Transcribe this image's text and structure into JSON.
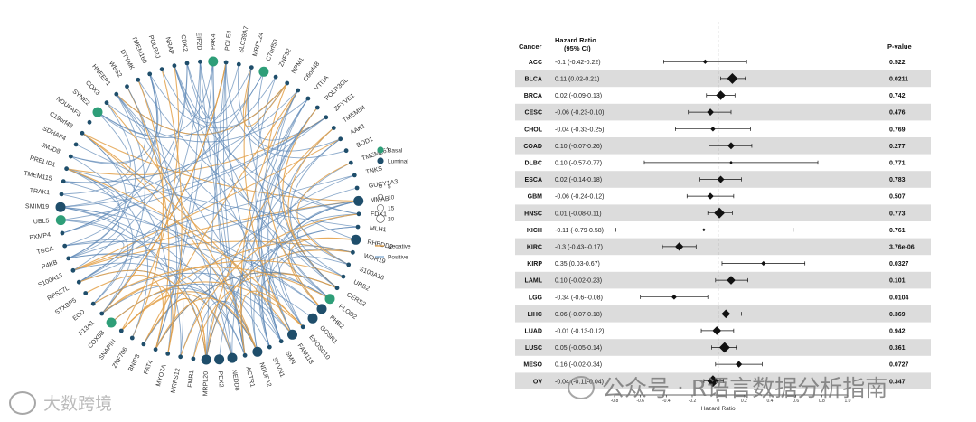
{
  "network": {
    "legend": {
      "groups": [
        {
          "label": "Basal",
          "color": "#2e9e78"
        },
        {
          "label": "Luminal",
          "color": "#1f4e6b"
        }
      ],
      "sizes": [
        "5",
        "10",
        "15",
        "20"
      ],
      "edges": [
        {
          "label": "Negative",
          "color": "#e3a14a"
        },
        {
          "label": "Positive",
          "color": "#7ea7cf"
        }
      ]
    },
    "genes": [
      {
        "name": "POLE4",
        "group": "luminal",
        "size": 1
      },
      {
        "name": "SLC39A7",
        "group": "luminal",
        "size": 1
      },
      {
        "name": "MRPL24",
        "group": "luminal",
        "size": 1
      },
      {
        "name": "C7orf50",
        "group": "basal",
        "size": 2
      },
      {
        "name": "ZNF32",
        "group": "luminal",
        "size": 1
      },
      {
        "name": "NPM1",
        "group": "luminal",
        "size": 1
      },
      {
        "name": "C6orf48",
        "group": "luminal",
        "size": 1
      },
      {
        "name": "VTI1A",
        "group": "luminal",
        "size": 1
      },
      {
        "name": "POLR3GL",
        "group": "luminal",
        "size": 1
      },
      {
        "name": "ZFYVE1",
        "group": "luminal",
        "size": 1
      },
      {
        "name": "TMEM54",
        "group": "luminal",
        "size": 1
      },
      {
        "name": "AAK1",
        "group": "luminal",
        "size": 1
      },
      {
        "name": "BOD1",
        "group": "luminal",
        "size": 1
      },
      {
        "name": "TMEM261",
        "group": "luminal",
        "size": 1
      },
      {
        "name": "TNKS",
        "group": "luminal",
        "size": 1
      },
      {
        "name": "GUCY1A3",
        "group": "luminal",
        "size": 1
      },
      {
        "name": "MMAB",
        "group": "luminal",
        "size": 2
      },
      {
        "name": "FDX1",
        "group": "luminal",
        "size": 1
      },
      {
        "name": "MLH1",
        "group": "luminal",
        "size": 1
      },
      {
        "name": "RHBDD2",
        "group": "luminal",
        "size": 2
      },
      {
        "name": "WDR19",
        "group": "luminal",
        "size": 1
      },
      {
        "name": "S100A16",
        "group": "luminal",
        "size": 1
      },
      {
        "name": "URB2",
        "group": "luminal",
        "size": 1
      },
      {
        "name": "CERS2",
        "group": "luminal",
        "size": 1
      },
      {
        "name": "PLOD2",
        "group": "basal",
        "size": 2
      },
      {
        "name": "PHB2",
        "group": "luminal",
        "size": 2
      },
      {
        "name": "GOSR1",
        "group": "luminal",
        "size": 2
      },
      {
        "name": "EXOSC10",
        "group": "luminal",
        "size": 1
      },
      {
        "name": "FAM118",
        "group": "luminal",
        "size": 2
      },
      {
        "name": "SMN",
        "group": "luminal",
        "size": 1
      },
      {
        "name": "SYVN1",
        "group": "luminal",
        "size": 1
      },
      {
        "name": "NDUFA2",
        "group": "luminal",
        "size": 2
      },
      {
        "name": "ACTR1",
        "group": "luminal",
        "size": 1
      },
      {
        "name": "NEDD8",
        "group": "luminal",
        "size": 2
      },
      {
        "name": "PEX2",
        "group": "luminal",
        "size": 2
      },
      {
        "name": "MRPL20",
        "group": "luminal",
        "size": 2
      },
      {
        "name": "FMR1",
        "group": "luminal",
        "size": 1
      },
      {
        "name": "MRPS12",
        "group": "luminal",
        "size": 1
      },
      {
        "name": "MYO7A",
        "group": "luminal",
        "size": 1
      },
      {
        "name": "FAT4",
        "group": "luminal",
        "size": 1
      },
      {
        "name": "BNIP3",
        "group": "luminal",
        "size": 1
      },
      {
        "name": "ZNF706",
        "group": "luminal",
        "size": 1
      },
      {
        "name": "SNAPIN",
        "group": "luminal",
        "size": 1
      },
      {
        "name": "COX5B",
        "group": "basal",
        "size": 2
      },
      {
        "name": "F13A1",
        "group": "luminal",
        "size": 1
      },
      {
        "name": "ECD",
        "group": "luminal",
        "size": 1
      },
      {
        "name": "STXBP5",
        "group": "luminal",
        "size": 1
      },
      {
        "name": "RPS27L",
        "group": "luminal",
        "size": 1
      },
      {
        "name": "S100A13",
        "group": "luminal",
        "size": 1
      },
      {
        "name": "P4KB",
        "group": "luminal",
        "size": 1
      },
      {
        "name": "TBCA",
        "group": "luminal",
        "size": 1
      },
      {
        "name": "PXMP4",
        "group": "luminal",
        "size": 1
      },
      {
        "name": "UBL5",
        "group": "basal",
        "size": 2
      },
      {
        "name": "SMIM19",
        "group": "luminal",
        "size": 2
      },
      {
        "name": "TRAK1",
        "group": "luminal",
        "size": 1
      },
      {
        "name": "TMEM115",
        "group": "luminal",
        "size": 1
      },
      {
        "name": "PRELID1",
        "group": "luminal",
        "size": 1
      },
      {
        "name": "JMJD8",
        "group": "luminal",
        "size": 1
      },
      {
        "name": "SDHAF4",
        "group": "luminal",
        "size": 1
      },
      {
        "name": "C19orf43",
        "group": "luminal",
        "size": 1
      },
      {
        "name": "NDUFAF3",
        "group": "luminal",
        "size": 1
      },
      {
        "name": "SYNE2",
        "group": "basal",
        "size": 2
      },
      {
        "name": "COX3",
        "group": "luminal",
        "size": 1
      },
      {
        "name": "HNEEP1",
        "group": "luminal",
        "size": 1
      },
      {
        "name": "WBS2",
        "group": "luminal",
        "size": 1
      },
      {
        "name": "DTYMK",
        "group": "luminal",
        "size": 1
      },
      {
        "name": "TMEM160",
        "group": "luminal",
        "size": 1
      },
      {
        "name": "POLR2J",
        "group": "luminal",
        "size": 1
      },
      {
        "name": "NRAP",
        "group": "luminal",
        "size": 1
      },
      {
        "name": "CDK2",
        "group": "luminal",
        "size": 1
      },
      {
        "name": "EIF2D",
        "group": "luminal",
        "size": 1
      },
      {
        "name": "PAK4",
        "group": "basal",
        "size": 2
      }
    ]
  },
  "chart_data": {
    "type": "forest",
    "title": "",
    "headers": {
      "cancer": "Cancer",
      "hr_line1": "Hazard Ratio",
      "hr_line2": "(95% CI)",
      "pvalue": "P-value"
    },
    "xlabel": "Hazard Ratio",
    "xlim": [
      -0.8,
      1.0
    ],
    "ticks": [
      "-0.8",
      "-0.6",
      "-0.4",
      "-0.2",
      "0",
      "0.2",
      "0.4",
      "0.6",
      "0.8",
      "1.0"
    ],
    "reference_line": 0,
    "rows": [
      {
        "cancer": "ACC",
        "ci_text": "-0.1 (-0.42-0.22)",
        "hr": -0.1,
        "low": -0.42,
        "high": 0.22,
        "p": "0.522",
        "shaded": false
      },
      {
        "cancer": "BLCA",
        "ci_text": "0.11 (0.02-0.21)",
        "hr": 0.11,
        "low": 0.02,
        "high": 0.21,
        "p": "0.0211",
        "shaded": true
      },
      {
        "cancer": "BRCA",
        "ci_text": "0.02 (-0.09-0.13)",
        "hr": 0.02,
        "low": -0.09,
        "high": 0.13,
        "p": "0.742",
        "shaded": false
      },
      {
        "cancer": "CESC",
        "ci_text": "-0.06 (-0.23-0.10)",
        "hr": -0.06,
        "low": -0.23,
        "high": 0.1,
        "p": "0.476",
        "shaded": true
      },
      {
        "cancer": "CHOL",
        "ci_text": "-0.04 (-0.33-0.25)",
        "hr": -0.04,
        "low": -0.33,
        "high": 0.25,
        "p": "0.769",
        "shaded": false
      },
      {
        "cancer": "COAD",
        "ci_text": "0.10 (-0.07-0.26)",
        "hr": 0.1,
        "low": -0.07,
        "high": 0.26,
        "p": "0.277",
        "shaded": true
      },
      {
        "cancer": "DLBC",
        "ci_text": "0.10 (-0.57-0.77)",
        "hr": 0.1,
        "low": -0.57,
        "high": 0.77,
        "p": "0.771",
        "shaded": false
      },
      {
        "cancer": "ESCA",
        "ci_text": "0.02 (-0.14-0.18)",
        "hr": 0.02,
        "low": -0.14,
        "high": 0.18,
        "p": "0.783",
        "shaded": true
      },
      {
        "cancer": "GBM",
        "ci_text": "-0.06 (-0.24-0.12)",
        "hr": -0.06,
        "low": -0.24,
        "high": 0.12,
        "p": "0.507",
        "shaded": false
      },
      {
        "cancer": "HNSC",
        "ci_text": "0.01 (-0.08-0.11)",
        "hr": 0.01,
        "low": -0.08,
        "high": 0.11,
        "p": "0.773",
        "shaded": true
      },
      {
        "cancer": "KICH",
        "ci_text": "-0.11 (-0.79-0.58)",
        "hr": -0.11,
        "low": -0.79,
        "high": 0.58,
        "p": "0.761",
        "shaded": false
      },
      {
        "cancer": "KIRC",
        "ci_text": "-0.3 (-0.43--0.17)",
        "hr": -0.3,
        "low": -0.43,
        "high": -0.17,
        "p": "3.76e-06",
        "shaded": true
      },
      {
        "cancer": "KIRP",
        "ci_text": "0.35 (0.03-0.67)",
        "hr": 0.35,
        "low": 0.03,
        "high": 0.67,
        "p": "0.0327",
        "shaded": false
      },
      {
        "cancer": "LAML",
        "ci_text": "0.10 (-0.02-0.23)",
        "hr": 0.1,
        "low": -0.02,
        "high": 0.23,
        "p": "0.101",
        "shaded": true
      },
      {
        "cancer": "LGG",
        "ci_text": "-0.34 (-0.6--0.08)",
        "hr": -0.34,
        "low": -0.6,
        "high": -0.08,
        "p": "0.0104",
        "shaded": false
      },
      {
        "cancer": "LIHC",
        "ci_text": "0.06 (-0.07-0.18)",
        "hr": 0.06,
        "low": -0.07,
        "high": 0.18,
        "p": "0.369",
        "shaded": true
      },
      {
        "cancer": "LUAD",
        "ci_text": "-0.01 (-0.13-0.12)",
        "hr": -0.01,
        "low": -0.13,
        "high": 0.12,
        "p": "0.942",
        "shaded": false
      },
      {
        "cancer": "LUSC",
        "ci_text": "0.05 (-0.05-0.14)",
        "hr": 0.05,
        "low": -0.05,
        "high": 0.14,
        "p": "0.361",
        "shaded": true
      },
      {
        "cancer": "MESO",
        "ci_text": "0.16 (-0.02-0.34)",
        "hr": 0.16,
        "low": -0.02,
        "high": 0.34,
        "p": "0.0727",
        "shaded": false
      },
      {
        "cancer": "OV",
        "ci_text": "-0.04 (-0.11-0.04)",
        "hr": -0.04,
        "low": -0.11,
        "high": 0.04,
        "p": "0.347",
        "shaded": true
      }
    ]
  },
  "watermarks": {
    "left": "大数跨境",
    "right": "公众号 · R语言数据分析指南"
  }
}
